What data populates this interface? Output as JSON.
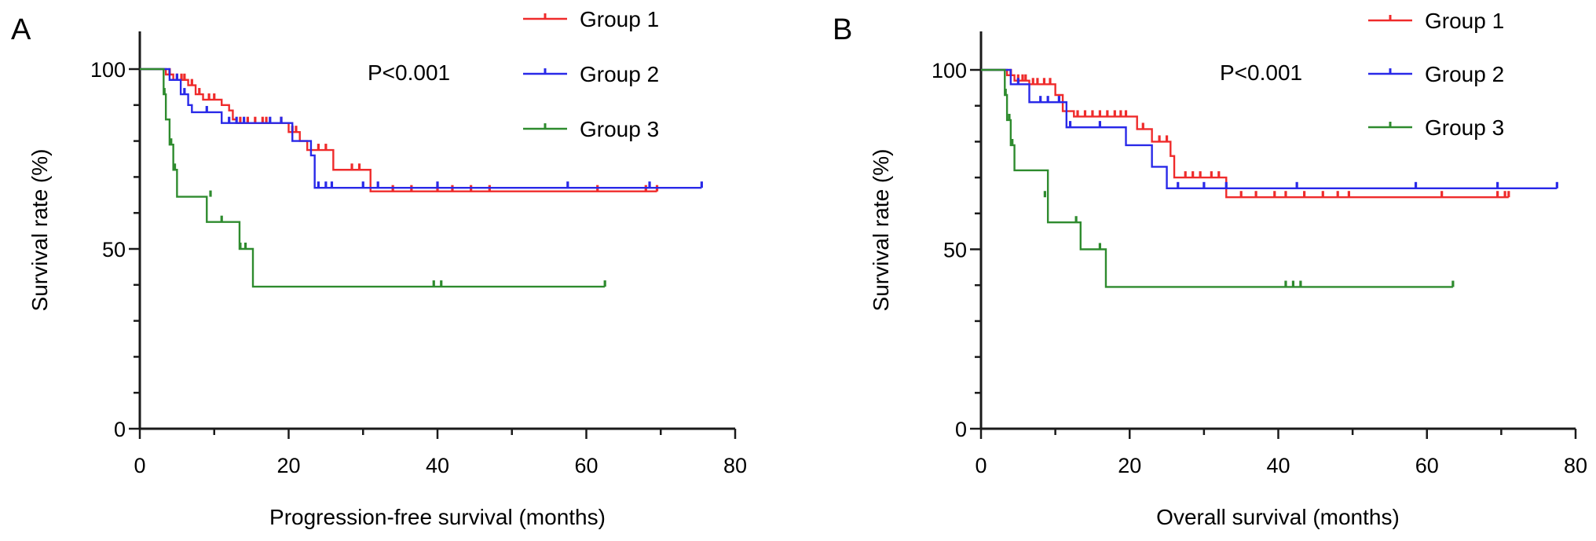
{
  "colors": {
    "group1": "#ef2b2b",
    "group2": "#2929e8",
    "group3": "#2e8b2e",
    "axis": "#1a1a1a"
  },
  "chart_data": [
    {
      "type": "line",
      "subtype": "kaplan-meier",
      "panel_label": "A",
      "title": "",
      "xlabel": "Progression-free survival (months)",
      "ylabel": "Survival rate (%)",
      "xlim": [
        0,
        80
      ],
      "ylim": [
        0,
        110
      ],
      "xticks": [
        0,
        20,
        40,
        60,
        80
      ],
      "yticks": [
        0,
        50,
        100
      ],
      "annotation": "P<0.001",
      "legend": {
        "placement": "top-right",
        "entries": [
          "Group 1",
          "Group 2",
          "Group 3"
        ]
      },
      "series": [
        {
          "name": "Group 1",
          "color": "#ef2b2b",
          "steps": [
            [
              0,
              100
            ],
            [
              3,
              100
            ],
            [
              3.5,
              98.5
            ],
            [
              4.5,
              97
            ],
            [
              6.5,
              95.5
            ],
            [
              7.5,
              93
            ],
            [
              8.5,
              91.5
            ],
            [
              11,
              90
            ],
            [
              12,
              88.5
            ],
            [
              12.5,
              86
            ],
            [
              13,
              85
            ],
            [
              20,
              82.5
            ],
            [
              21.5,
              80
            ],
            [
              22.5,
              77.5
            ],
            [
              26,
              72
            ],
            [
              31,
              66
            ],
            [
              69.5,
              66
            ]
          ],
          "censored": [
            [
              4,
              98.5
            ],
            [
              5,
              97
            ],
            [
              5.6,
              97
            ],
            [
              6,
              97
            ],
            [
              7,
              95.5
            ],
            [
              8,
              93
            ],
            [
              9.3,
              91.5
            ],
            [
              10,
              91.5
            ],
            [
              13.5,
              85
            ],
            [
              14.5,
              85
            ],
            [
              15.5,
              85
            ],
            [
              16.5,
              85
            ],
            [
              17,
              85
            ],
            [
              19,
              85
            ],
            [
              20.5,
              82.5
            ],
            [
              21,
              82.5
            ],
            [
              24,
              77.5
            ],
            [
              25,
              77.5
            ],
            [
              28.5,
              72
            ],
            [
              29.5,
              72
            ],
            [
              34,
              66
            ],
            [
              36.5,
              66
            ],
            [
              40,
              66
            ],
            [
              42,
              66
            ],
            [
              44.5,
              66
            ],
            [
              47,
              66
            ],
            [
              61.5,
              66
            ],
            [
              68,
              66
            ],
            [
              69.5,
              66
            ]
          ]
        },
        {
          "name": "Group 2",
          "color": "#2929e8",
          "steps": [
            [
              0,
              100
            ],
            [
              3,
              100
            ],
            [
              4,
              97
            ],
            [
              5.5,
              93
            ],
            [
              6.5,
              90
            ],
            [
              7,
              88
            ],
            [
              10.5,
              88
            ],
            [
              11,
              85
            ],
            [
              20,
              85
            ],
            [
              20.5,
              80
            ],
            [
              22.5,
              80
            ],
            [
              23,
              76
            ],
            [
              23.5,
              67
            ],
            [
              75.5,
              67
            ]
          ],
          "censored": [
            [
              5,
              97
            ],
            [
              6,
              93
            ],
            [
              9,
              88
            ],
            [
              12,
              85
            ],
            [
              13,
              85
            ],
            [
              14,
              85
            ],
            [
              17.5,
              85
            ],
            [
              19,
              85
            ],
            [
              24,
              67
            ],
            [
              25,
              67
            ],
            [
              25.8,
              67
            ],
            [
              30,
              67
            ],
            [
              32,
              67
            ],
            [
              40,
              67
            ],
            [
              57.5,
              67
            ],
            [
              68.5,
              67
            ],
            [
              75.5,
              67
            ]
          ]
        },
        {
          "name": "Group 3",
          "color": "#2e8b2e",
          "steps": [
            [
              0,
              100
            ],
            [
              3,
              100
            ],
            [
              3.2,
              93
            ],
            [
              3.5,
              86
            ],
            [
              4,
              79
            ],
            [
              4.5,
              72
            ],
            [
              5,
              64.5
            ],
            [
              8.5,
              64.5
            ],
            [
              9,
              57.5
            ],
            [
              13,
              57.5
            ],
            [
              13.4,
              50
            ],
            [
              15,
              50
            ],
            [
              15.2,
              39.5
            ],
            [
              62.5,
              39.5
            ]
          ],
          "censored": [
            [
              3.3,
              93
            ],
            [
              4.2,
              79
            ],
            [
              4.7,
              72
            ],
            [
              9.5,
              64.5
            ],
            [
              11,
              57.5
            ],
            [
              13.5,
              50
            ],
            [
              14.2,
              50
            ],
            [
              39.5,
              39.5
            ],
            [
              40.5,
              39.5
            ],
            [
              62.5,
              39.5
            ]
          ]
        }
      ]
    },
    {
      "type": "line",
      "subtype": "kaplan-meier",
      "panel_label": "B",
      "title": "",
      "xlabel": "Overall survival (months)",
      "ylabel": "Survival rate (%)",
      "xlim": [
        0,
        80
      ],
      "ylim": [
        0,
        110
      ],
      "xticks": [
        0,
        20,
        40,
        60,
        80
      ],
      "yticks": [
        0,
        50,
        100
      ],
      "annotation": "P<0.001",
      "legend": {
        "placement": "top-right",
        "entries": [
          "Group 1",
          "Group 2",
          "Group 3"
        ]
      },
      "series": [
        {
          "name": "Group 1",
          "color": "#ef2b2b",
          "steps": [
            [
              0,
              100
            ],
            [
              3,
              100
            ],
            [
              3.5,
              98.5
            ],
            [
              4.5,
              97
            ],
            [
              6.5,
              96
            ],
            [
              10,
              93
            ],
            [
              11,
              88.5
            ],
            [
              12.5,
              87
            ],
            [
              21,
              83.5
            ],
            [
              23,
              80
            ],
            [
              25.5,
              76
            ],
            [
              26,
              70
            ],
            [
              33,
              64.5
            ],
            [
              71,
              64.5
            ]
          ],
          "censored": [
            [
              4,
              98.5
            ],
            [
              5,
              97
            ],
            [
              5.6,
              97
            ],
            [
              6,
              97
            ],
            [
              7,
              96
            ],
            [
              7.6,
              96
            ],
            [
              8.5,
              96
            ],
            [
              9.3,
              96
            ],
            [
              13,
              87
            ],
            [
              14,
              87
            ],
            [
              15,
              87
            ],
            [
              16,
              87
            ],
            [
              17,
              87
            ],
            [
              18,
              87
            ],
            [
              18.8,
              87
            ],
            [
              19.5,
              87
            ],
            [
              21.8,
              83.5
            ],
            [
              24,
              80
            ],
            [
              25,
              80
            ],
            [
              27.5,
              70
            ],
            [
              28.5,
              70
            ],
            [
              29.5,
              70
            ],
            [
              31,
              70
            ],
            [
              32,
              70
            ],
            [
              35,
              64.5
            ],
            [
              37,
              64.5
            ],
            [
              39.5,
              64.5
            ],
            [
              41,
              64.5
            ],
            [
              43.5,
              64.5
            ],
            [
              46,
              64.5
            ],
            [
              48,
              64.5
            ],
            [
              49.5,
              64.5
            ],
            [
              62,
              64.5
            ],
            [
              69.5,
              64.5
            ],
            [
              70.5,
              64.5
            ],
            [
              71,
              64.5
            ]
          ]
        },
        {
          "name": "Group 2",
          "color": "#2929e8",
          "steps": [
            [
              0,
              100
            ],
            [
              3,
              100
            ],
            [
              4,
              96
            ],
            [
              6.5,
              91
            ],
            [
              11,
              91
            ],
            [
              11.5,
              84
            ],
            [
              19,
              84
            ],
            [
              19.5,
              79
            ],
            [
              22.5,
              79
            ],
            [
              23,
              73
            ],
            [
              25,
              67
            ],
            [
              77.5,
              67
            ]
          ],
          "censored": [
            [
              5,
              96
            ],
            [
              8,
              91
            ],
            [
              9,
              91
            ],
            [
              10.5,
              91
            ],
            [
              12,
              84
            ],
            [
              16,
              84
            ],
            [
              26.5,
              67
            ],
            [
              30,
              67
            ],
            [
              33,
              67
            ],
            [
              42.5,
              67
            ],
            [
              58.5,
              67
            ],
            [
              69.5,
              67
            ],
            [
              77.5,
              67
            ]
          ]
        },
        {
          "name": "Group 3",
          "color": "#2e8b2e",
          "steps": [
            [
              0,
              100
            ],
            [
              3,
              100
            ],
            [
              3.2,
              93
            ],
            [
              3.5,
              86
            ],
            [
              4,
              79
            ],
            [
              4.5,
              72
            ],
            [
              5,
              72
            ],
            [
              8.5,
              72
            ],
            [
              9,
              57.5
            ],
            [
              13,
              57.5
            ],
            [
              13.4,
              50
            ],
            [
              16.5,
              50
            ],
            [
              16.8,
              39.5
            ],
            [
              63.5,
              39.5
            ]
          ],
          "censored": [
            [
              3.3,
              93
            ],
            [
              3.8,
              86
            ],
            [
              4.2,
              79
            ],
            [
              8.6,
              64.5
            ],
            [
              12.8,
              57.5
            ],
            [
              16,
              50
            ],
            [
              41,
              39.5
            ],
            [
              42,
              39.5
            ],
            [
              43,
              39.5
            ],
            [
              63.5,
              39.5
            ]
          ]
        }
      ]
    }
  ]
}
